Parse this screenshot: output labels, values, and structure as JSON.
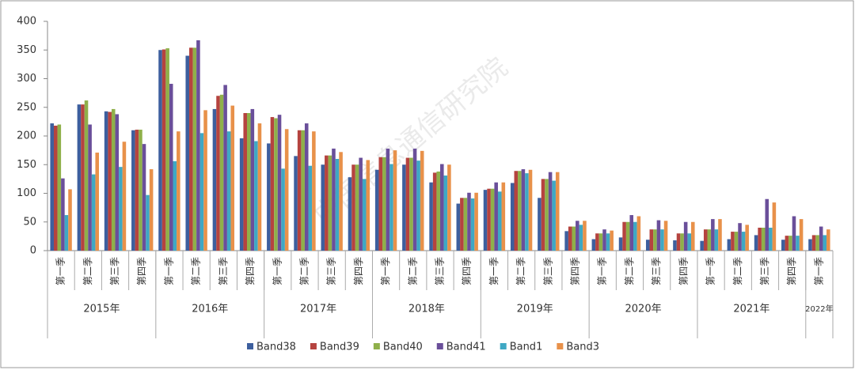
{
  "chart_data": {
    "type": "bar",
    "watermark": "中国信息通信研究院",
    "categories": [
      "第一季",
      "第二季",
      "第三季",
      "第四季",
      "第一季",
      "第二季",
      "第三季",
      "第四季",
      "第一季",
      "第二季",
      "第三季",
      "第四季",
      "第一季",
      "第二季",
      "第三季",
      "第四季",
      "第一季",
      "第二季",
      "第三季",
      "第四季",
      "第一季",
      "第二季",
      "第三季",
      "第四季",
      "第一季",
      "第二季",
      "第三季",
      "第四季",
      "第一季"
    ],
    "category_groups": [
      {
        "label": "2015年",
        "size": 4
      },
      {
        "label": "2016年",
        "size": 4
      },
      {
        "label": "2017年",
        "size": 4
      },
      {
        "label": "2018年",
        "size": 4
      },
      {
        "label": "2019年",
        "size": 4
      },
      {
        "label": "2020年",
        "size": 4
      },
      {
        "label": "2021年",
        "size": 4
      },
      {
        "label": "2022年",
        "size": 1
      }
    ],
    "series": [
      {
        "name": "Band38",
        "color": "#3d5f9e",
        "values": [
          222,
          255,
          243,
          210,
          350,
          340,
          247,
          196,
          187,
          165,
          150,
          128,
          141,
          150,
          119,
          82,
          106,
          118,
          92,
          34,
          20,
          23,
          19,
          18,
          17,
          20,
          27,
          19,
          20
        ]
      },
      {
        "name": "Band39",
        "color": "#b5433f",
        "values": [
          218,
          255,
          242,
          211,
          351,
          354,
          270,
          240,
          233,
          210,
          166,
          150,
          163,
          162,
          136,
          92,
          108,
          139,
          125,
          42,
          30,
          50,
          37,
          30,
          37,
          33,
          40,
          26,
          27
        ]
      },
      {
        "name": "Band40",
        "color": "#8fb04a",
        "values": [
          220,
          262,
          247,
          211,
          353,
          354,
          272,
          240,
          231,
          210,
          166,
          150,
          163,
          162,
          138,
          92,
          108,
          139,
          125,
          42,
          30,
          50,
          37,
          30,
          37,
          33,
          40,
          26,
          27
        ]
      },
      {
        "name": "Band41",
        "color": "#6a4f9a",
        "values": [
          126,
          220,
          238,
          186,
          291,
          367,
          289,
          247,
          237,
          222,
          178,
          162,
          178,
          178,
          151,
          101,
          119,
          142,
          137,
          52,
          37,
          62,
          53,
          50,
          55,
          48,
          90,
          60,
          42
        ]
      },
      {
        "name": "Band1",
        "color": "#3fa8c4",
        "values": [
          62,
          133,
          146,
          97,
          156,
          205,
          208,
          191,
          143,
          148,
          160,
          125,
          151,
          157,
          131,
          91,
          103,
          135,
          122,
          45,
          30,
          50,
          37,
          30,
          37,
          33,
          40,
          26,
          27
        ]
      },
      {
        "name": "Band3",
        "color": "#e8914a",
        "values": [
          107,
          171,
          190,
          142,
          208,
          245,
          253,
          222,
          212,
          208,
          172,
          158,
          175,
          174,
          150,
          101,
          119,
          141,
          137,
          52,
          35,
          60,
          52,
          50,
          55,
          45,
          84,
          55,
          37
        ]
      }
    ],
    "ylim": [
      0,
      400
    ],
    "yticks": [
      0,
      50,
      100,
      150,
      200,
      250,
      300,
      350,
      400
    ],
    "grid": false,
    "legend": "bottom"
  }
}
